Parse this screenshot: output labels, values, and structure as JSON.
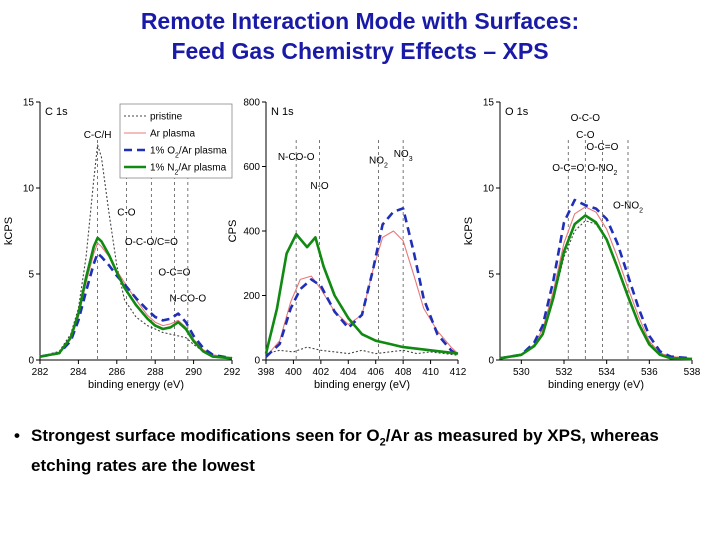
{
  "slide": {
    "title_line1": "Remote Interaction Mode with Surfaces:",
    "title_line2": "Feed Gas Chemistry Effects – XPS",
    "bullet_symbol": "•",
    "bullet_part1": "Strongest surface modifications seen for O",
    "bullet_sub": "2",
    "bullet_part2": "/Ar as measured by XPS, whereas etching rates are the lowest"
  },
  "colors": {
    "title": "#1a1aa8",
    "pristine": "#444444",
    "ar": "#e8787a",
    "o2": "#1f2fb8",
    "n2": "#108a10"
  },
  "legend": [
    {
      "key": "pristine",
      "text": "pristine",
      "style": "dotted"
    },
    {
      "key": "ar",
      "text": "Ar plasma",
      "style": "solid"
    },
    {
      "key": "o2",
      "text": "1% O",
      "sub": "2",
      "rest": "/Ar plasma",
      "style": "dashed"
    },
    {
      "key": "n2",
      "text": "1% N",
      "sub": "2",
      "rest": "/Ar plasma",
      "style": "solid-thick"
    }
  ],
  "chart_data": [
    {
      "type": "line",
      "panel_label": "C 1s",
      "xlabel": "binding energy (eV)",
      "ylabel": "kCPS",
      "xlim": [
        282,
        292
      ],
      "ylim": [
        0,
        15
      ],
      "x_reversed": false,
      "xticks": [
        282,
        284,
        286,
        288,
        290,
        292
      ],
      "yticks": [
        0,
        5,
        10,
        15
      ],
      "annotations": [
        {
          "text": "C-C/H",
          "x": 285.0,
          "y": 12.9
        },
        {
          "text": "C-O",
          "x": 286.5,
          "y": 8.4
        },
        {
          "text": "O-C-O/C=O",
          "x": 287.8,
          "y": 6.7
        },
        {
          "text": "O-C=O",
          "x": 289.0,
          "y": 4.9
        },
        {
          "text": "N-CO-O",
          "x": 289.7,
          "y": 3.4
        }
      ],
      "dashed_markers": [
        285.0,
        286.5,
        287.8,
        289.0,
        289.7
      ],
      "series": [
        {
          "key": "pristine",
          "x": [
            282,
            283,
            283.6,
            284,
            284.4,
            284.8,
            285,
            285.2,
            285.6,
            286,
            286.4,
            287,
            287.6,
            288,
            288.4,
            288.8,
            289.2,
            289.6,
            290,
            290.5,
            291,
            292
          ],
          "y": [
            0.2,
            0.5,
            1.5,
            3,
            6,
            10.5,
            12.5,
            11.8,
            8.5,
            5.5,
            3.5,
            2.5,
            2,
            1.8,
            1.6,
            1.5,
            1.4,
            1.3,
            0.9,
            0.5,
            0.3,
            0.1
          ]
        },
        {
          "key": "ar",
          "x": [
            282,
            283,
            283.6,
            284,
            284.4,
            284.8,
            285,
            285.2,
            285.6,
            286,
            286.4,
            287,
            287.6,
            288,
            288.4,
            288.8,
            289.2,
            289.6,
            290,
            290.5,
            291,
            292
          ],
          "y": [
            0.2,
            0.4,
            1.2,
            2.5,
            4.5,
            6.2,
            6.8,
            6.6,
            6.0,
            5.2,
            4.5,
            3.5,
            2.6,
            2.2,
            2.0,
            2.1,
            2.3,
            1.9,
            1.2,
            0.6,
            0.3,
            0.1
          ]
        },
        {
          "key": "o2",
          "x": [
            282,
            283,
            283.6,
            284,
            284.4,
            284.8,
            285,
            285.2,
            285.6,
            286,
            286.4,
            287,
            287.6,
            288,
            288.4,
            288.8,
            289.2,
            289.6,
            290,
            290.5,
            291,
            292
          ],
          "y": [
            0.2,
            0.4,
            1.1,
            2.3,
            4.0,
            5.6,
            6.2,
            6.0,
            5.5,
            4.9,
            4.4,
            3.6,
            2.9,
            2.5,
            2.3,
            2.4,
            2.7,
            2.2,
            1.4,
            0.7,
            0.3,
            0.1
          ]
        },
        {
          "key": "n2",
          "x": [
            282,
            283,
            283.6,
            284,
            284.4,
            284.8,
            285,
            285.2,
            285.6,
            286,
            286.4,
            287,
            287.6,
            288,
            288.4,
            288.8,
            289.2,
            289.6,
            290,
            290.5,
            291,
            292
          ],
          "y": [
            0.2,
            0.4,
            1.3,
            2.7,
            4.8,
            6.6,
            7.1,
            6.9,
            6.1,
            5.1,
            4.2,
            3.2,
            2.4,
            2.0,
            1.8,
            1.9,
            2.2,
            1.8,
            1.1,
            0.5,
            0.2,
            0.1
          ]
        }
      ]
    },
    {
      "type": "line",
      "panel_label": "N 1s",
      "xlabel": "binding energy (eV)",
      "ylabel": "CPS",
      "xlim": [
        398,
        412
      ],
      "ylim": [
        0,
        800
      ],
      "x_reversed": false,
      "xticks": [
        398,
        400,
        402,
        404,
        406,
        408,
        410,
        412
      ],
      "yticks": [
        0,
        200,
        400,
        600,
        800
      ],
      "annotations": [
        {
          "text": "N-CO-O",
          "x": 400.2,
          "y": 620
        },
        {
          "text": "N-O",
          "x": 401.9,
          "y": 530
        },
        {
          "text": "NO",
          "sub": "2",
          "x": 406.2,
          "y": 610
        },
        {
          "text": "NO",
          "sub": "3",
          "x": 408.0,
          "y": 630
        }
      ],
      "dashed_markers": [
        400.2,
        401.9,
        406.2,
        408.0
      ],
      "series": [
        {
          "key": "pristine",
          "x": [
            398,
            399,
            400,
            401,
            402,
            403,
            404,
            405,
            406,
            407,
            408,
            409,
            410,
            411,
            412
          ],
          "y": [
            20,
            30,
            25,
            40,
            30,
            25,
            20,
            30,
            20,
            25,
            30,
            20,
            25,
            20,
            15
          ]
        },
        {
          "key": "ar",
          "x": [
            398,
            399,
            399.8,
            400.5,
            401.3,
            402,
            403,
            404,
            405,
            405.8,
            406.5,
            407.3,
            408,
            408.8,
            409.5,
            410.5,
            411.5,
            412
          ],
          "y": [
            10,
            60,
            180,
            250,
            260,
            220,
            150,
            110,
            140,
            280,
            380,
            400,
            370,
            260,
            160,
            90,
            40,
            20
          ]
        },
        {
          "key": "o2",
          "x": [
            398,
            399,
            399.8,
            400.5,
            401.3,
            402,
            403,
            404,
            405,
            405.8,
            406.5,
            407.3,
            408,
            408.8,
            409.5,
            410.5,
            411.5,
            412
          ],
          "y": [
            10,
            50,
            160,
            220,
            250,
            230,
            150,
            100,
            140,
            280,
            420,
            460,
            470,
            330,
            190,
            80,
            30,
            15
          ]
        },
        {
          "key": "n2",
          "x": [
            398,
            398.8,
            399.5,
            400.2,
            401,
            401.6,
            402.2,
            403,
            404,
            405,
            406,
            407,
            408,
            409,
            410,
            411,
            412
          ],
          "y": [
            20,
            160,
            330,
            390,
            350,
            380,
            290,
            200,
            130,
            80,
            60,
            50,
            40,
            35,
            30,
            25,
            20
          ]
        }
      ]
    },
    {
      "type": "line",
      "panel_label": "O 1s",
      "xlabel": "binding energy (eV)",
      "ylabel": "kCPS",
      "xlim": [
        529,
        538
      ],
      "ylim": [
        0,
        15
      ],
      "x_reversed": false,
      "xticks": [
        530,
        532,
        534,
        536,
        538
      ],
      "yticks": [
        0,
        5,
        10,
        15
      ],
      "annotations": [
        {
          "text": "O-C-O",
          "x": 533.0,
          "y": 13.9
        },
        {
          "text": "C-O",
          "x": 533.0,
          "y": 12.9
        },
        {
          "text": "O-C=O",
          "x": 532.2,
          "y": 11.0
        },
        {
          "text": "O-C=O",
          "x": 533.8,
          "y": 12.2
        },
        {
          "text": "O-NO",
          "sub": "2",
          "x": 533.8,
          "y": 11.0
        },
        {
          "text": "O-NO",
          "sub": "2",
          "x": 535.0,
          "y": 8.8
        }
      ],
      "dashed_markers": [
        532.2,
        533.0,
        533.8,
        535.0
      ],
      "series": [
        {
          "key": "pristine",
          "x": [
            529,
            530,
            530.6,
            531,
            531.5,
            532,
            532.5,
            533,
            533.5,
            534,
            534.5,
            535,
            535.5,
            536,
            536.5,
            537,
            538
          ],
          "y": [
            0.1,
            0.3,
            0.8,
            1.6,
            3.5,
            6.0,
            7.5,
            8.1,
            7.9,
            7.0,
            5.5,
            3.8,
            2.2,
            1.0,
            0.4,
            0.2,
            0.1
          ]
        },
        {
          "key": "ar",
          "x": [
            529,
            530,
            530.6,
            531,
            531.5,
            532,
            532.5,
            533,
            533.5,
            534,
            534.5,
            535,
            535.5,
            536,
            536.5,
            537,
            538
          ],
          "y": [
            0.1,
            0.3,
            0.9,
            1.8,
            4.0,
            6.8,
            8.5,
            8.9,
            8.6,
            7.6,
            6.0,
            4.2,
            2.5,
            1.1,
            0.4,
            0.2,
            0.1
          ]
        },
        {
          "key": "o2",
          "x": [
            529,
            530,
            530.6,
            531,
            531.5,
            532,
            532.5,
            533,
            533.5,
            534,
            534.5,
            535,
            535.5,
            536,
            536.5,
            537,
            538
          ],
          "y": [
            0.1,
            0.3,
            1.0,
            2.0,
            4.6,
            8.0,
            9.3,
            9.0,
            8.8,
            8.2,
            6.8,
            4.9,
            3.0,
            1.4,
            0.5,
            0.2,
            0.1
          ]
        },
        {
          "key": "n2",
          "x": [
            529,
            530,
            530.6,
            531,
            531.5,
            532,
            532.5,
            533,
            533.5,
            534,
            534.5,
            535,
            535.5,
            536,
            536.5,
            537,
            538
          ],
          "y": [
            0.1,
            0.3,
            0.8,
            1.5,
            3.6,
            6.3,
            7.9,
            8.4,
            8.0,
            7.0,
            5.4,
            3.7,
            2.1,
            0.9,
            0.3,
            0.1,
            0.05
          ]
        }
      ]
    }
  ]
}
